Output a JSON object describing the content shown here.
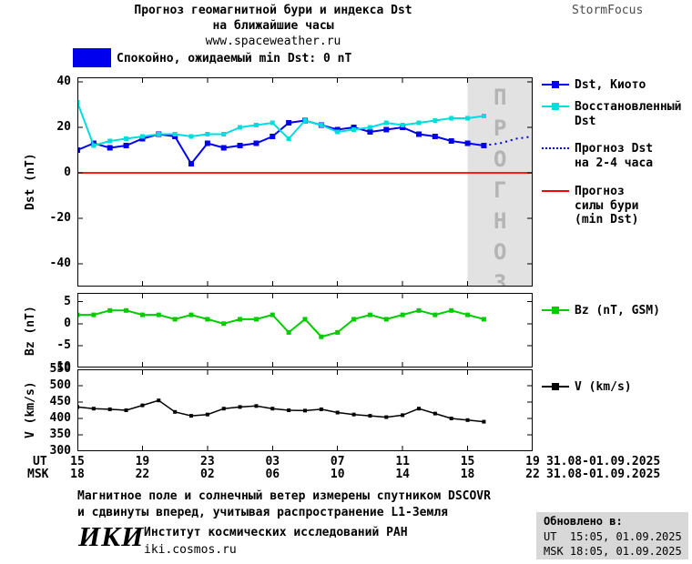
{
  "header": {
    "title_line1": "Прогноз геомагнитной бури и индекса Dst",
    "title_line2": "на ближайшие часы",
    "website": "www.spaceweather.ru",
    "brand": "StormFocus"
  },
  "status": {
    "label": "Спокойно, ожидаемый min Dst: 0 nT",
    "swatch_color": "#0000ee"
  },
  "xaxis": {
    "ut_label": "UT",
    "msk_label": "MSK",
    "ut_ticks": [
      "15",
      "19",
      "23",
      "03",
      "07",
      "11",
      "15",
      "19"
    ],
    "msk_ticks": [
      "18",
      "22",
      "02",
      "06",
      "10",
      "14",
      "18",
      "22"
    ],
    "ut_date": "31.08-01.09.2025",
    "msk_date": "31.08-01.09.2025"
  },
  "chart_data": [
    {
      "type": "line",
      "ylabel": "Dst (nT)",
      "ylim": [
        -50,
        42
      ],
      "yticks": [
        40,
        20,
        0,
        -20,
        -40
      ],
      "xlim": [
        0,
        28
      ],
      "xticks": [
        0,
        4,
        8,
        12,
        16,
        20,
        24,
        28
      ],
      "forecast_band": [
        24,
        28
      ],
      "forecast_label": "ПРОГНОЗ",
      "ref_line": {
        "y": 0,
        "color": "#ff0000",
        "name": "Прогноз силы бури (min Dst)"
      },
      "series": [
        {
          "name": "Dst, Киото",
          "color": "#0000ee",
          "marker": true,
          "marker_size": 6,
          "x": [
            0,
            1,
            2,
            3,
            4,
            5,
            6,
            7,
            8,
            9,
            10,
            11,
            12,
            13,
            14,
            15,
            16,
            17,
            18,
            19,
            20,
            21,
            22,
            23,
            24,
            25
          ],
          "values": [
            10,
            13,
            11,
            12,
            15,
            17,
            16,
            4,
            13,
            11,
            12,
            13,
            16,
            22,
            23,
            21,
            19,
            20,
            18,
            19,
            20,
            17,
            16,
            14,
            13,
            12
          ]
        },
        {
          "name": "Восстановленный Dst",
          "color": "#00dddd",
          "marker": true,
          "marker_size": 5,
          "x": [
            0,
            1,
            2,
            3,
            4,
            5,
            6,
            7,
            8,
            9,
            10,
            11,
            12,
            13,
            14,
            15,
            16,
            17,
            18,
            19,
            20,
            21,
            22,
            23,
            24,
            25
          ],
          "values": [
            31,
            12,
            14,
            15,
            16,
            17,
            17,
            16,
            17,
            17,
            20,
            21,
            22,
            15,
            23,
            21,
            18,
            19,
            20,
            22,
            21,
            22,
            23,
            24,
            24,
            25
          ]
        },
        {
          "name": "Прогноз Dst на 2-4 часа",
          "color": "#0000ee",
          "style": "dotted",
          "x": [
            25,
            26,
            27,
            28
          ],
          "values": [
            12,
            13,
            15,
            16
          ]
        }
      ]
    },
    {
      "type": "line",
      "ylabel": "Bz (nT)",
      "ylim": [
        -10,
        7
      ],
      "yticks": [
        5,
        0,
        -5,
        -10
      ],
      "xlim": [
        0,
        28
      ],
      "xticks": [
        0,
        4,
        8,
        12,
        16,
        20,
        24,
        28
      ],
      "series": [
        {
          "name": "Bz (nT, GSM)",
          "color": "#00cc00",
          "marker": true,
          "marker_size": 5,
          "x": [
            0,
            1,
            2,
            3,
            4,
            5,
            6,
            7,
            8,
            9,
            10,
            11,
            12,
            13,
            14,
            15,
            16,
            17,
            18,
            19,
            20,
            21,
            22,
            23,
            24,
            25
          ],
          "values": [
            2,
            2,
            3,
            3,
            2,
            2,
            1,
            2,
            1,
            0,
            1,
            1,
            2,
            -2,
            1,
            -3,
            -2,
            1,
            2,
            1,
            2,
            3,
            2,
            3,
            2,
            1
          ]
        }
      ]
    },
    {
      "type": "line",
      "ylabel": "V (km/s)",
      "ylim": [
        300,
        550
      ],
      "yticks": [
        550,
        500,
        450,
        400,
        350,
        300
      ],
      "xlim": [
        0,
        28
      ],
      "xticks": [
        0,
        4,
        8,
        12,
        16,
        20,
        24,
        28
      ],
      "series": [
        {
          "name": "V (km/s)",
          "color": "#000000",
          "marker": true,
          "marker_size": 4,
          "width": 1.5,
          "x": [
            0,
            1,
            2,
            3,
            4,
            5,
            6,
            7,
            8,
            9,
            10,
            11,
            12,
            13,
            14,
            15,
            16,
            17,
            18,
            19,
            20,
            21,
            22,
            23,
            24,
            25
          ],
          "values": [
            435,
            430,
            428,
            425,
            440,
            455,
            420,
            408,
            412,
            430,
            435,
            438,
            430,
            425,
            424,
            428,
            418,
            412,
            408,
            404,
            410,
            430,
            415,
            400,
            395,
            390
          ]
        }
      ]
    }
  ],
  "footnote": {
    "line1": "Магнитное поле и солнечный ветер измерены спутником DSCOVR",
    "line2": "и сдвинуты вперед, учитывая распространение L1-Земля"
  },
  "footer": {
    "logo": "ИКИ",
    "org": "Институт космических исследований РАН",
    "site": "iki.cosmos.ru",
    "updated_title": "Обновлено в:",
    "updated_ut": "UT  15:05, 01.09.2025",
    "updated_msk": "MSK 18:05, 01.09.2025"
  }
}
